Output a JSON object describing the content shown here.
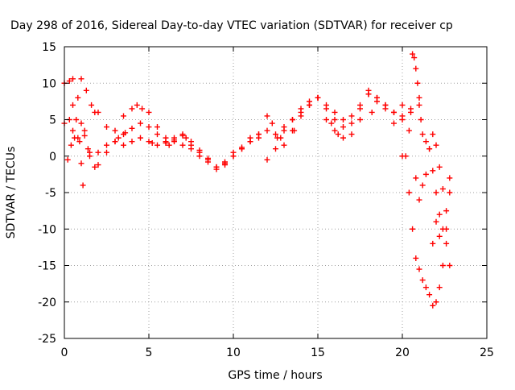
{
  "chart_data": {
    "type": "scatter",
    "title": "Day 298 of 2016, Sidereal Day-to-day VTEC variation (SDTVAR) for receiver cp",
    "xlabel": "GPS time / hours",
    "ylabel": "SDTVAR / TECUs",
    "xlim": [
      0,
      25
    ],
    "ylim": [
      -25,
      15
    ],
    "x_ticks": [
      0,
      5,
      10,
      15,
      20,
      25
    ],
    "y_ticks": [
      -25,
      -20,
      -15,
      -10,
      -5,
      0,
      5,
      10,
      15
    ],
    "grid": true,
    "marker": "+",
    "color": "#ff0000",
    "series": [
      {
        "x": [
          0.0,
          0.3,
          0.5,
          0.8,
          1.0,
          1.2,
          1.5,
          1.8,
          2.0,
          2.5,
          3.0,
          3.5,
          4.0,
          4.5,
          5.0,
          5.5,
          6.0,
          6.5,
          7.0,
          7.5,
          8.0,
          8.5,
          9.0,
          9.5,
          10.0,
          10.5,
          11.0,
          11.5,
          12.0,
          12.5,
          13.0,
          13.5,
          14.0,
          14.5,
          15.0,
          15.5,
          16.0,
          16.5,
          17.0,
          17.5,
          18.0,
          18.5,
          19.0,
          19.5,
          20.0,
          20.5,
          21.0
        ],
        "y": [
          4.5,
          5.0,
          3.5,
          2.5,
          4.5,
          3.5,
          0.5,
          -1.5,
          -1.2,
          0.5,
          2.0,
          3.0,
          3.8,
          4.5,
          4.0,
          3.0,
          2.0,
          2.5,
          2.8,
          1.5,
          0.5,
          -0.5,
          -1.8,
          -1.0,
          0.0,
          1.0,
          2.0,
          2.5,
          3.5,
          3.0,
          4.0,
          5.0,
          6.0,
          7.0,
          8.0,
          7.0,
          6.0,
          5.0,
          5.5,
          7.0,
          9.0,
          8.0,
          7.0,
          6.0,
          5.5,
          6.0,
          7.0
        ]
      },
      {
        "x": [
          0.0,
          0.3,
          0.5,
          0.8,
          1.0,
          1.3,
          1.6,
          1.8,
          2.0,
          2.5,
          3.0,
          3.5,
          4.0,
          4.5,
          5.0,
          5.5,
          6.0,
          6.5,
          7.0,
          7.5,
          8.0,
          8.5,
          9.0,
          9.5,
          10.0,
          10.5,
          11.0,
          11.5,
          12.0,
          12.5,
          13.0,
          13.5,
          14.0,
          14.5,
          15.0,
          15.5,
          16.0,
          16.5,
          17.0,
          17.5,
          18.0,
          18.5,
          19.0,
          19.5,
          20.0
        ],
        "y": [
          10.0,
          10.3,
          10.6,
          8.0,
          10.6,
          9.0,
          7.0,
          6.0,
          6.0,
          4.0,
          2.0,
          1.5,
          2.0,
          2.5,
          2.0,
          1.5,
          1.8,
          2.2,
          3.0,
          2.0,
          0.8,
          -0.3,
          -1.5,
          -0.8,
          0.5,
          1.2,
          2.5,
          3.0,
          -0.5,
          1.0,
          3.5,
          5.0,
          6.5,
          7.5,
          8.0,
          5.0,
          3.5,
          2.5,
          3.0,
          5.0,
          8.5,
          7.5,
          6.5,
          4.5,
          0.0
        ]
      },
      {
        "x": [
          0.5,
          0.7,
          0.9,
          1.0,
          1.1,
          1.5,
          2.0,
          2.5,
          3.0,
          3.5,
          4.0,
          4.3,
          4.6,
          5.0,
          5.5,
          6.0,
          6.5,
          7.0,
          7.5,
          8.0,
          8.5,
          9.0,
          9.5,
          10.0,
          10.5,
          11.0,
          11.5,
          12.0,
          12.3,
          12.6,
          13.0,
          13.5,
          14.0,
          14.5,
          15.0,
          15.5,
          16.0,
          16.5,
          17.0,
          17.5,
          18.0,
          18.5,
          19.0,
          19.5,
          20.0,
          20.5
        ],
        "y": [
          7.0,
          5.0,
          2.0,
          -1.0,
          -4.0,
          0.0,
          0.5,
          1.5,
          3.5,
          5.5,
          6.5,
          7.0,
          6.5,
          6.0,
          4.0,
          2.5,
          2.0,
          1.5,
          1.0,
          0.0,
          -0.8,
          -1.5,
          -1.2,
          0.0,
          1.0,
          2.0,
          3.0,
          5.5,
          4.5,
          2.5,
          1.5,
          3.5,
          5.5,
          7.0,
          8.0,
          6.5,
          5.0,
          4.0,
          4.5,
          6.5,
          8.5,
          8.0,
          7.0,
          6.0,
          7.0,
          6.5
        ]
      },
      {
        "x": [
          20.0,
          20.2,
          20.4,
          20.6,
          20.8,
          21.0,
          21.2,
          21.4,
          21.6,
          21.8,
          22.0,
          22.2,
          22.4,
          22.6,
          22.8
        ],
        "y": [
          5.0,
          0.0,
          -5.0,
          -10.0,
          -14.0,
          -15.5,
          -17.0,
          -18.0,
          -19.0,
          -20.5,
          -20.0,
          -18.0,
          -15.0,
          -10.0,
          -5.0
        ]
      },
      {
        "x": [
          20.6,
          20.7,
          20.8,
          20.9,
          21.0,
          21.1,
          21.2,
          21.4,
          21.6,
          21.8,
          22.0,
          22.2,
          22.4,
          22.6,
          22.8
        ],
        "y": [
          14.0,
          13.5,
          12.0,
          10.0,
          8.0,
          5.0,
          3.0,
          2.0,
          1.0,
          -2.0,
          -5.0,
          -8.0,
          -10.0,
          -12.0,
          -15.0
        ]
      },
      {
        "x": [
          20.8,
          21.0,
          21.2,
          21.4,
          21.6,
          21.8,
          22.0,
          22.2,
          22.4,
          22.6,
          22.8
        ],
        "y": [
          -3.0,
          -6.0,
          -4.0,
          -2.5,
          1.0,
          3.0,
          1.5,
          -1.5,
          -4.5,
          -7.5,
          -3.0
        ]
      },
      {
        "x": [
          0.2,
          0.4,
          0.6,
          1.2,
          1.4,
          3.2,
          3.6,
          5.2,
          6.2,
          7.2,
          12.8,
          13.6,
          15.8,
          16.2,
          18.2,
          20.4,
          21.8,
          22.0,
          22.2
        ],
        "y": [
          -0.5,
          1.5,
          2.5,
          2.8,
          1.0,
          2.5,
          3.2,
          1.8,
          1.5,
          2.5,
          2.5,
          3.5,
          4.5,
          3.0,
          6.0,
          3.5,
          -12.0,
          -9.0,
          -11.0
        ]
      }
    ]
  }
}
